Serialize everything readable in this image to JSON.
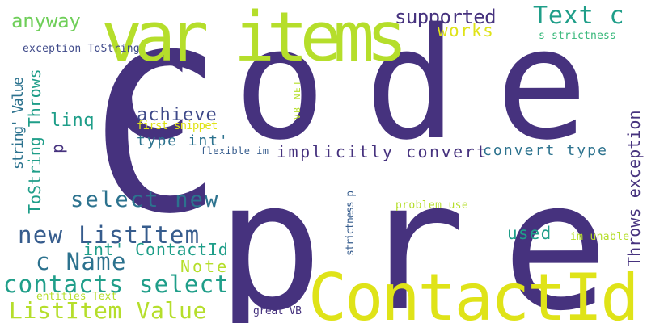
{
  "palette": {
    "deep_purple": "#46327e",
    "indigo": "#3e4989",
    "blue": "#365c8d",
    "teal_blue": "#2c728e",
    "teal": "#1f9e89",
    "green": "#35b779",
    "light_green": "#6ece58",
    "lime": "#b5de2b",
    "yellow": "#dfe318"
  },
  "words": [
    {
      "text": "code",
      "color": "#46327e"
    },
    {
      "text": "C",
      "color": "#46327e"
    },
    {
      "text": "pre",
      "color": "#46327e"
    },
    {
      "text": "ContactId",
      "color": "#dfe318"
    },
    {
      "text": "var items",
      "color": "#b5de2b"
    },
    {
      "text": "Text c",
      "color": "#1f9e89"
    },
    {
      "text": "supported",
      "color": "#46327e"
    },
    {
      "text": "works",
      "color": "#dfe318"
    },
    {
      "text": "s strictness",
      "color": "#35b779"
    },
    {
      "text": "anyway",
      "color": "#6ece58"
    },
    {
      "text": "exception ToString",
      "color": "#3e4989"
    },
    {
      "text": "string' Value",
      "color": "#2c728e"
    },
    {
      "text": "ToString Throws",
      "color": "#1f9e89"
    },
    {
      "text": "achieve",
      "color": "#3e4989"
    },
    {
      "text": "linq",
      "color": "#1f9e89"
    },
    {
      "text": "first snippet",
      "color": "#dfe318"
    },
    {
      "text": "type int'",
      "color": "#2c728e"
    },
    {
      "text": "p",
      "color": "#46327e"
    },
    {
      "text": "VB NET",
      "color": "#b5de2b"
    },
    {
      "text": "flexible im",
      "color": "#365c8d"
    },
    {
      "text": "implicitly convert",
      "color": "#46327e"
    },
    {
      "text": "convert type",
      "color": "#2c728e"
    },
    {
      "text": "Throws exception",
      "color": "#46327e"
    },
    {
      "text": "select new",
      "color": "#2c728e"
    },
    {
      "text": "strictness p",
      "color": "#365c8d"
    },
    {
      "text": "problem use",
      "color": "#b5de2b"
    },
    {
      "text": "new ListItem",
      "color": "#365c8d"
    },
    {
      "text": "used",
      "color": "#1f9e89"
    },
    {
      "text": "im unable",
      "color": "#b5de2b"
    },
    {
      "text": "int' ContactId",
      "color": "#1f9e89"
    },
    {
      "text": "c Name",
      "color": "#2c728e"
    },
    {
      "text": "Note",
      "color": "#b5de2b"
    },
    {
      "text": "contacts select",
      "color": "#1f9e89"
    },
    {
      "text": "entities Text",
      "color": "#b5de2b"
    },
    {
      "text": "ListItem Value",
      "color": "#b5de2b"
    },
    {
      "text": "great VB",
      "color": "#46327e"
    }
  ]
}
